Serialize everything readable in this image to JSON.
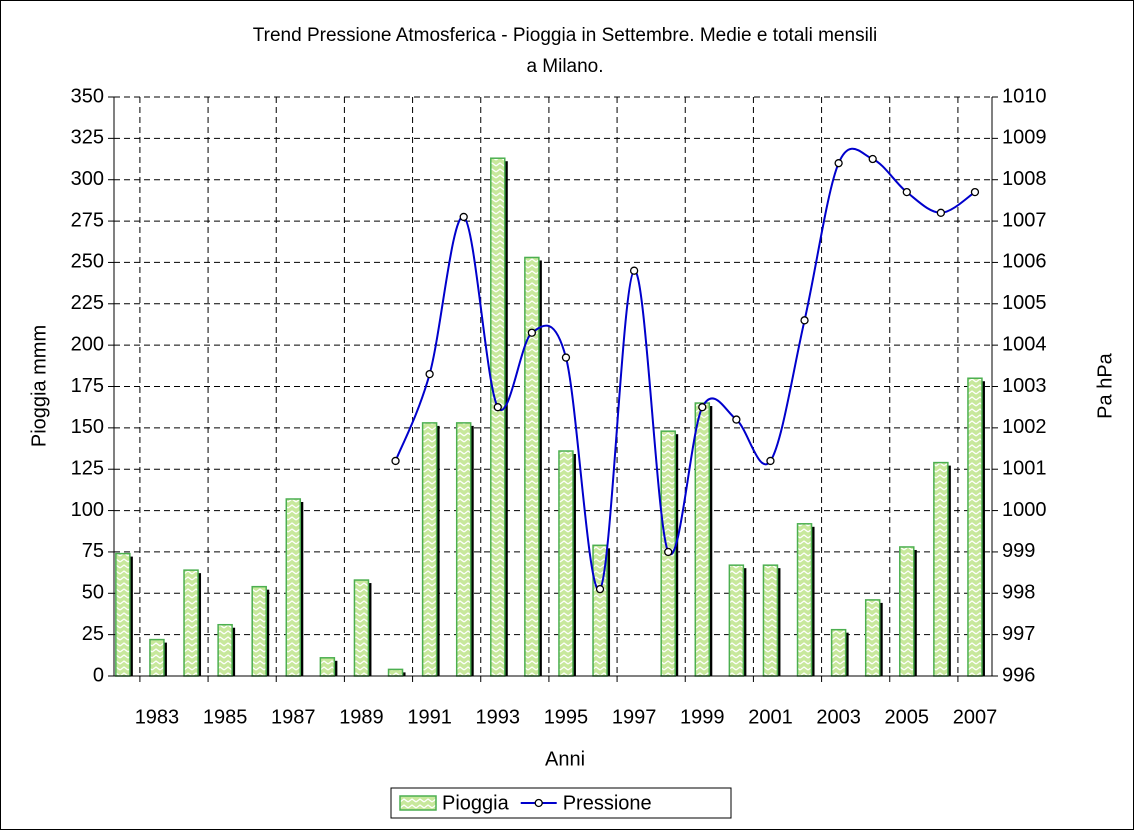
{
  "chart_data": {
    "type": "bar",
    "title": [
      "Trend Pressione Atmosferica - Pioggia in Settembre. Medie e totali mensili",
      "a Milano."
    ],
    "x_label": "Anni",
    "y_label": "Pioggia mmm",
    "y2_label": "Pa hPa",
    "x": [
      1982,
      1983,
      1984,
      1985,
      1986,
      1987,
      1988,
      1989,
      1990,
      1991,
      1992,
      1993,
      1994,
      1995,
      1996,
      1997,
      1998,
      1999,
      2000,
      2001,
      2002,
      2003,
      2004,
      2005,
      2006,
      2007
    ],
    "series": [
      {
        "name": "Pioggia",
        "type": "bar",
        "color": "#c8e89c",
        "values": [
          74,
          22,
          64,
          31,
          54,
          107,
          11,
          58,
          4,
          153,
          153,
          313,
          253,
          136,
          79,
          0,
          148,
          165,
          67,
          67,
          92,
          28,
          46,
          78,
          129,
          180
        ]
      },
      {
        "name": "Pressione",
        "type": "line",
        "axis": "y2",
        "color": "#0000cc",
        "values": [
          null,
          null,
          null,
          null,
          null,
          null,
          null,
          null,
          1001.2,
          1003.3,
          1007.1,
          1002.5,
          1004.3,
          1003.7,
          998.1,
          1005.8,
          999.0,
          1002.5,
          1002.2,
          1001.2,
          1004.6,
          1008.4,
          1008.5,
          1007.7,
          1007.2,
          1007.7
        ]
      }
    ],
    "xlim": [
      1981.74,
      2007.5
    ],
    "xticks": [
      1983,
      1985,
      1987,
      1989,
      1991,
      1993,
      1995,
      1997,
      1999,
      2001,
      2003,
      2005,
      2007
    ],
    "ylim": [
      0,
      350
    ],
    "yticks": [
      0,
      25,
      50,
      75,
      100,
      125,
      150,
      175,
      200,
      225,
      250,
      275,
      300,
      325,
      350
    ],
    "y2lim": [
      996,
      1010
    ],
    "y2ticks": [
      996,
      997,
      998,
      999,
      1000,
      1001,
      1002,
      1003,
      1004,
      1005,
      1006,
      1007,
      1008,
      1009,
      1010
    ],
    "grid": true,
    "legend": "bottom"
  }
}
